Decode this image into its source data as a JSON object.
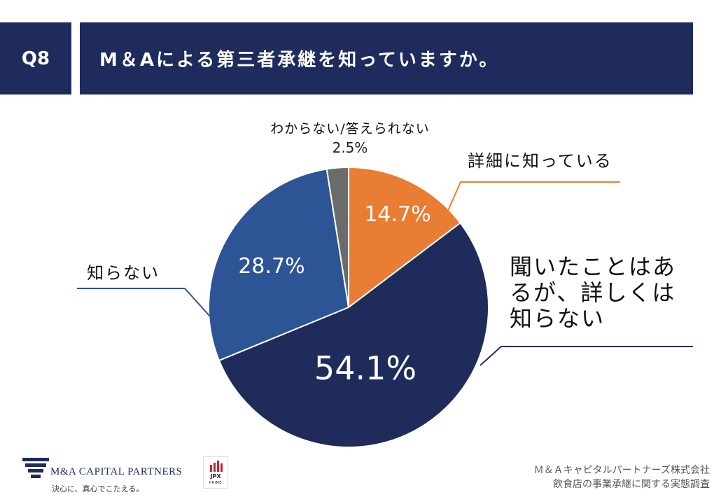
{
  "header": {
    "question_no": "Q8",
    "title": "M＆Aによる第三者承継を知っていますか。"
  },
  "chart_data": {
    "type": "pie",
    "start_angle_deg": 0,
    "direction": "clockwise",
    "slices": [
      {
        "label": "詳細に知っている",
        "value": 14.7,
        "pct_label": "14.7%",
        "color": "#e97d34"
      },
      {
        "label": "聞いたことはあるが、詳しくは知らない",
        "label_lines": [
          "聞いたことはあ",
          "るが、詳しくは",
          "知らない"
        ],
        "value": 54.1,
        "pct_label": "54.1%",
        "color": "#1f2b5b"
      },
      {
        "label": "知らない",
        "value": 28.7,
        "pct_label": "28.7%",
        "color": "#2d5494"
      },
      {
        "label": "わからない/答えられない",
        "value": 2.5,
        "pct_label": "2.5%",
        "color": "#6b6b6b"
      }
    ]
  },
  "footer": {
    "company_name": "M&A CAPITAL PARTNERS",
    "tagline": "決心に、真心でこたえる。",
    "jpx_main": "JPX",
    "jpx_sub": "PRIME",
    "source_line1": "Ｍ＆Ａキャピタルパートナーズ株式会社",
    "source_line2": "飲食店の事業承継に関する実態調査"
  }
}
